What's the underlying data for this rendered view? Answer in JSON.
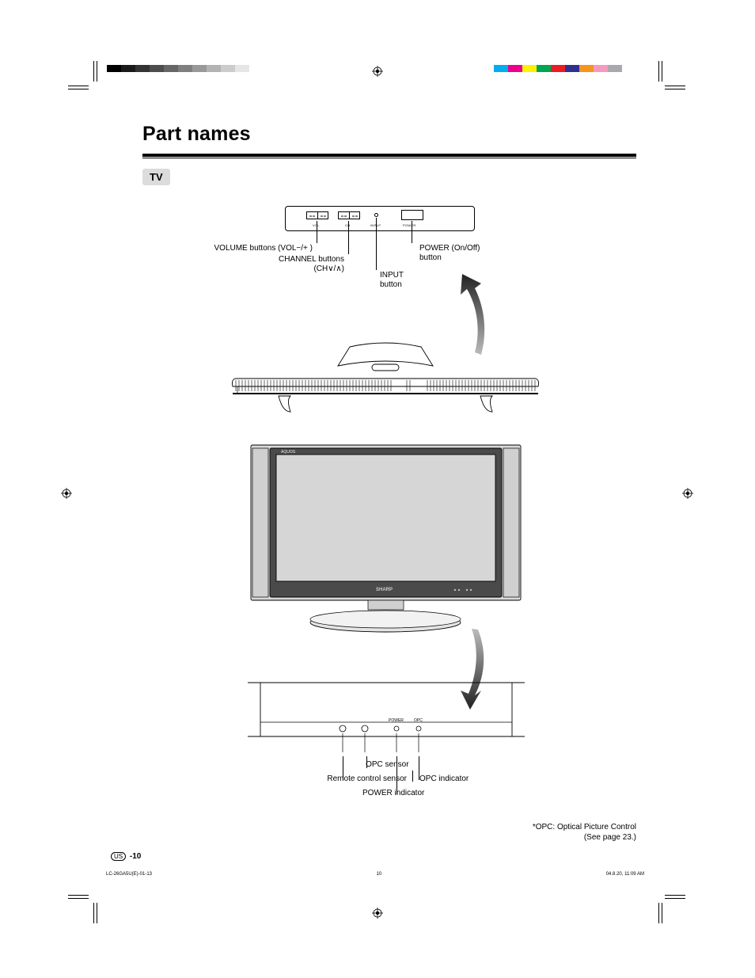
{
  "page": {
    "title": "Part names",
    "section_label": "TV",
    "page_number": "-10",
    "page_number_prefix": "US",
    "footer_file": "LC-26GA5U(E)-01-13",
    "footer_page": "10",
    "footer_timestamp": "04.8.20, 11:09 AM"
  },
  "printer_marks": {
    "grey_steps": [
      "#000000",
      "#1a1a1a",
      "#333333",
      "#4d4d4d",
      "#666666",
      "#7f7f7f",
      "#999999",
      "#b3b3b3",
      "#cccccc",
      "#e6e6e6",
      "#ffffff"
    ],
    "color_swatches": [
      "#00aeef",
      "#ec008c",
      "#fff200",
      "#00a651",
      "#ed1c24",
      "#2e3192",
      "#f7941d",
      "#f49ac1",
      "#a7a9ac",
      "#ffffff"
    ],
    "mark_color": "#000000"
  },
  "top_control": {
    "panel_body_border": "#000000",
    "labels": {
      "vol": "VOL",
      "ch": "CH",
      "input": "INPUT",
      "power": "POWER"
    },
    "callouts": {
      "volume": "VOLUME buttons (VOL−/+ )",
      "channel_line1": "CHANNEL buttons",
      "channel_line2": "(CH∨/∧)",
      "input_line1": "INPUT",
      "input_line2": "button",
      "power_line1": "POWER (On/Off)",
      "power_line2": "button"
    }
  },
  "tv_front": {
    "brand_small": "AQUOS",
    "brand_center": "SHARP"
  },
  "bottom_strip": {
    "labels": {
      "power": "POWER",
      "opc": "OPC"
    },
    "callouts": {
      "opc_sensor": "OPC sensor",
      "remote_sensor": "Remote control sensor",
      "opc_indicator": "OPC indicator",
      "power_indicator": "POWER indicator"
    }
  },
  "footnote": {
    "line1": "*OPC: Optical Picture Control",
    "line2": "(See page 23.)"
  },
  "colors": {
    "page_bg": "#ffffff",
    "text": "#000000",
    "grey_box": "#dcdcdc",
    "arrow_fill_dark": "#2b2b2b",
    "arrow_fill_light": "#888888",
    "screen_grey": "#d6d6d6",
    "tv_grey": "#dadada",
    "tv_dark": "#4a4a4a"
  }
}
